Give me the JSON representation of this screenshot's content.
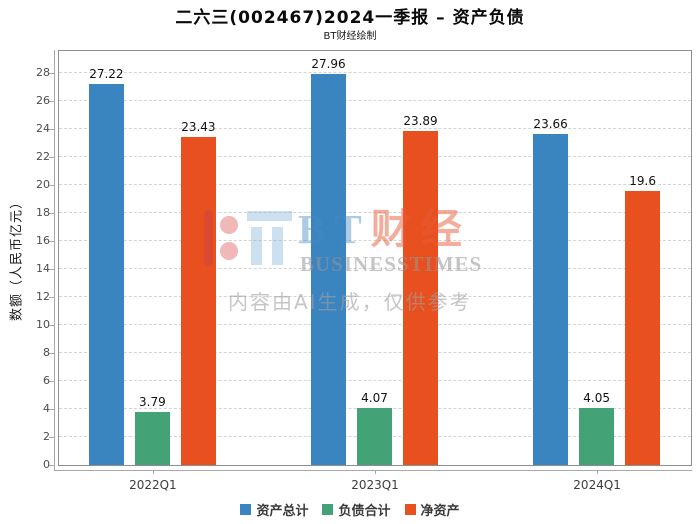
{
  "title": "二六三(002467)2024一季报 – 资产负债",
  "subtitle": "BT财经绘制",
  "watermark": {
    "brand_latin": "BT",
    "brand_cjk": "财经",
    "brand_en": "BUSINESSTIMES",
    "disclaimer": "内容由AI生成，仅供参考"
  },
  "chart_data": {
    "type": "bar",
    "title": "二六三(002467)2024一季报 – 资产负债",
    "subtitle": "BT财经绘制",
    "categories": [
      "2022Q1",
      "2023Q1",
      "2024Q1"
    ],
    "series": [
      {
        "name": "资产总计",
        "color": "#3a84c0",
        "values": [
          27.22,
          27.96,
          23.66
        ]
      },
      {
        "name": "负债合计",
        "color": "#43a376",
        "values": [
          3.79,
          4.07,
          4.05
        ]
      },
      {
        "name": "净资产",
        "color": "#e9501f",
        "values": [
          23.43,
          23.89,
          19.6
        ]
      }
    ],
    "xlabel": "",
    "ylabel": "数额（人民币亿元）",
    "ylim": [
      0,
      29.5
    ],
    "ytick_step": 2,
    "ytick_max_label": 28,
    "grid": true,
    "grid_style": "dashed",
    "legend_position": "bottom",
    "bar_value_labels": true
  }
}
